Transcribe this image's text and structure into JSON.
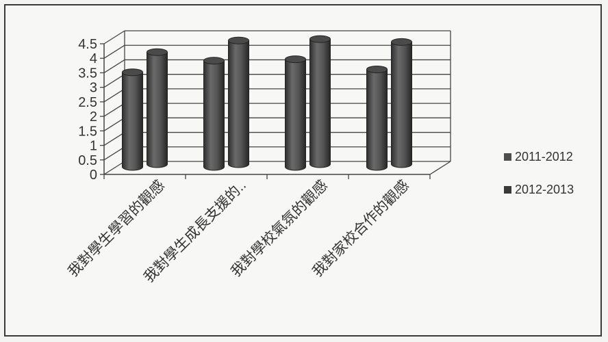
{
  "chart_data": {
    "type": "bar",
    "categories": [
      "我對學生學習的觀感",
      "我對學生成長支援的..",
      "我對學校氣氛的觀感",
      "我對家校合作的觀感"
    ],
    "series": [
      {
        "name": "2011-2012",
        "values": [
          3.4,
          3.8,
          3.85,
          3.5
        ]
      },
      {
        "name": "2012-2013",
        "values": [
          4.0,
          4.4,
          4.45,
          4.35
        ]
      }
    ],
    "yticks": [
      "0",
      "0.5",
      "1",
      "1.5",
      "2",
      "2.5",
      "3",
      "3.5",
      "4",
      "4.5"
    ],
    "ylim": [
      0,
      4.5
    ],
    "grid": true,
    "legend_position": "right",
    "colors": {
      "2011-2012": "#4e4e4e",
      "2012-2013": "#3a3a3a"
    }
  }
}
